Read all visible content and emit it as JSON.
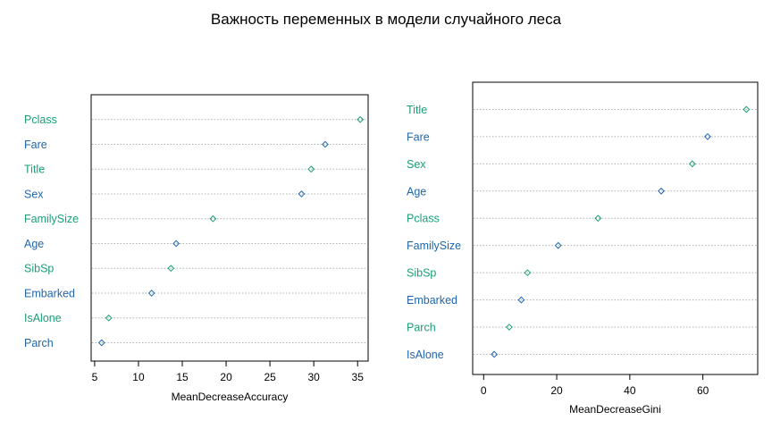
{
  "title": "Важность переменных в модели случайного леса",
  "colors": {
    "teal": "#1b9e77",
    "blue": "#2166ac"
  },
  "chart_data": [
    {
      "type": "scatter",
      "xlabel": "MeanDecreaseAccuracy",
      "xlim": [
        4.6,
        36.2
      ],
      "xticks": [
        "5",
        "10",
        "15",
        "20",
        "25",
        "30",
        "35"
      ],
      "categories": [
        "Pclass",
        "Fare",
        "Title",
        "Sex",
        "FamilySize",
        "Age",
        "SibSp",
        "Embarked",
        "IsAlone",
        "Parch"
      ],
      "values": [
        35.3,
        31.3,
        29.7,
        28.6,
        18.5,
        14.3,
        13.7,
        11.5,
        6.6,
        5.8
      ],
      "grid": "dotted horizontal"
    },
    {
      "type": "scatter",
      "xlabel": "MeanDecreaseGini",
      "xlim": [
        -3,
        75
      ],
      "xticks": [
        "0",
        "20",
        "40",
        "60"
      ],
      "categories": [
        "Title",
        "Fare",
        "Sex",
        "Age",
        "Pclass",
        "FamilySize",
        "SibSp",
        "Embarked",
        "Parch",
        "IsAlone"
      ],
      "values": [
        71.9,
        61.3,
        57.1,
        48.6,
        31.3,
        20.4,
        12.0,
        10.3,
        7.0,
        2.9
      ],
      "grid": "dotted horizontal"
    }
  ]
}
